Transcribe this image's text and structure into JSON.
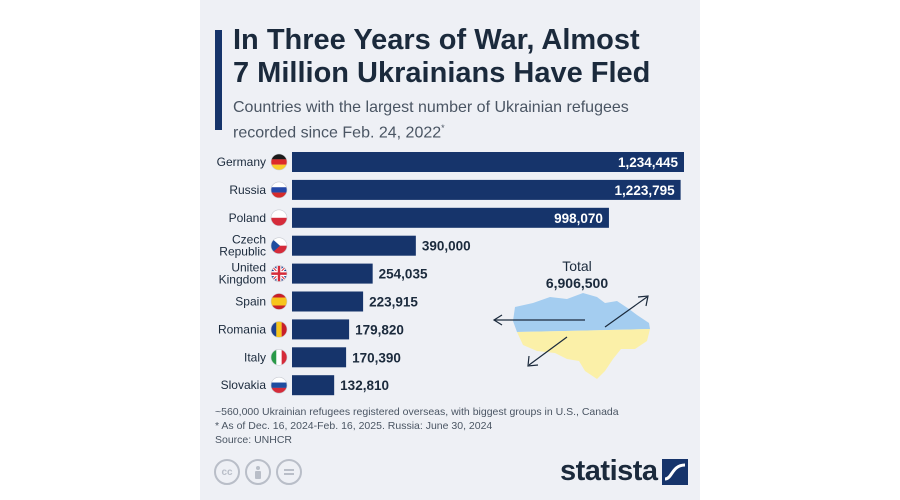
{
  "title_lines": [
    "In Three Years of War, Almost",
    "7 Million Ukrainians Have Fled"
  ],
  "subtitle": "Countries with the largest number of Ukrainian refugees recorded since Feb. 24, 2022",
  "subtitle_mark": "*",
  "total": {
    "label": "Total",
    "value": "6,906,500"
  },
  "notes": [
    "~560,000 Ukrainian refugees registered overseas, with biggest groups in U.S., Canada",
    "* As of Dec. 16, 2024-Feb. 16, 2025. Russia: June 30, 2024",
    "Source: UNHCR"
  ],
  "brand": "statista",
  "colors": {
    "bar": "#16346b",
    "ukraine_blue": "#a4cdf0",
    "ukraine_yellow": "#fbf0a8",
    "background": "#eef0f5"
  },
  "chart_data": {
    "type": "bar",
    "orientation": "horizontal",
    "categories": [
      "Germany",
      "Russia",
      "Poland",
      "Czech Republic",
      "United Kingdom",
      "Spain",
      "Romania",
      "Italy",
      "Slovakia"
    ],
    "values": [
      1234445,
      1223795,
      998070,
      390000,
      254035,
      223915,
      179820,
      170390,
      132810
    ],
    "value_labels": [
      "1,234,445",
      "1,223,795",
      "998,070",
      "390,000",
      "254,035",
      "223,915",
      "179,820",
      "170,390",
      "132,810"
    ],
    "flags": [
      "germany-flag-icon",
      "russia-flag-icon",
      "poland-flag-icon",
      "czech-flag-icon",
      "uk-flag-icon",
      "spain-flag-icon",
      "romania-flag-icon",
      "italy-flag-icon",
      "slovakia-flag-icon"
    ],
    "title": "In Three Years of War, Almost 7 Million Ukrainians Have Fled",
    "xlabel": "",
    "ylabel": "",
    "xlim": [
      0,
      1234445
    ],
    "grid": false
  }
}
